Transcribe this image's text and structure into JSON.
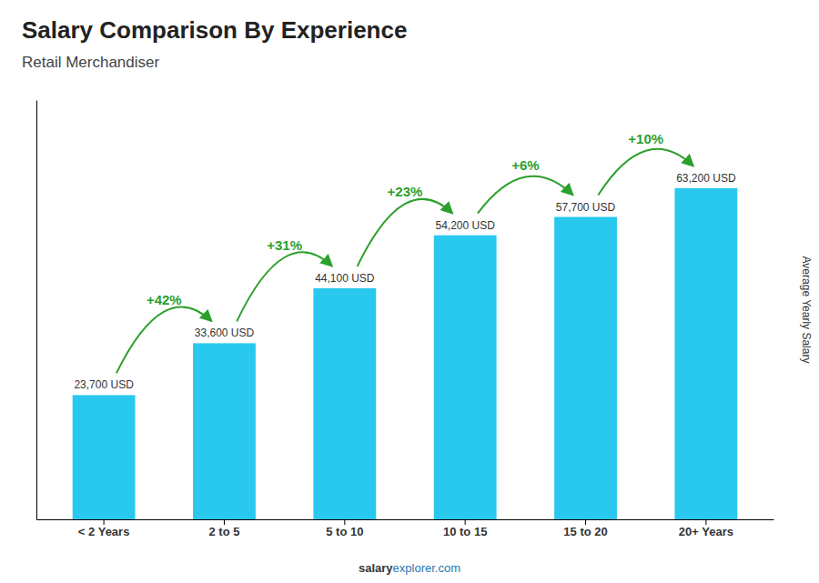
{
  "chart_data": {
    "type": "bar",
    "title": "Salary Comparison By Experience",
    "subtitle": "Retail Merchandiser",
    "categories": [
      "< 2 Years",
      "2 to 5",
      "5 to 10",
      "10 to 15",
      "15 to 20",
      "20+ Years"
    ],
    "values": [
      23700,
      33600,
      44100,
      54200,
      57700,
      63200
    ],
    "value_labels": [
      "23,700 USD",
      "33,600 USD",
      "44,100 USD",
      "54,200 USD",
      "57,700 USD",
      "63,200 USD"
    ],
    "data_labels": true,
    "annotations": [
      "+42%",
      "+31%",
      "+23%",
      "+6%",
      "+10%"
    ],
    "ylabel": "Average Yearly Salary",
    "source": [
      "salary",
      "explorer.com"
    ],
    "color": "#29c8ee",
    "ylim": [
      0,
      80000
    ],
    "tick_labels": "x",
    "grid": false
  }
}
